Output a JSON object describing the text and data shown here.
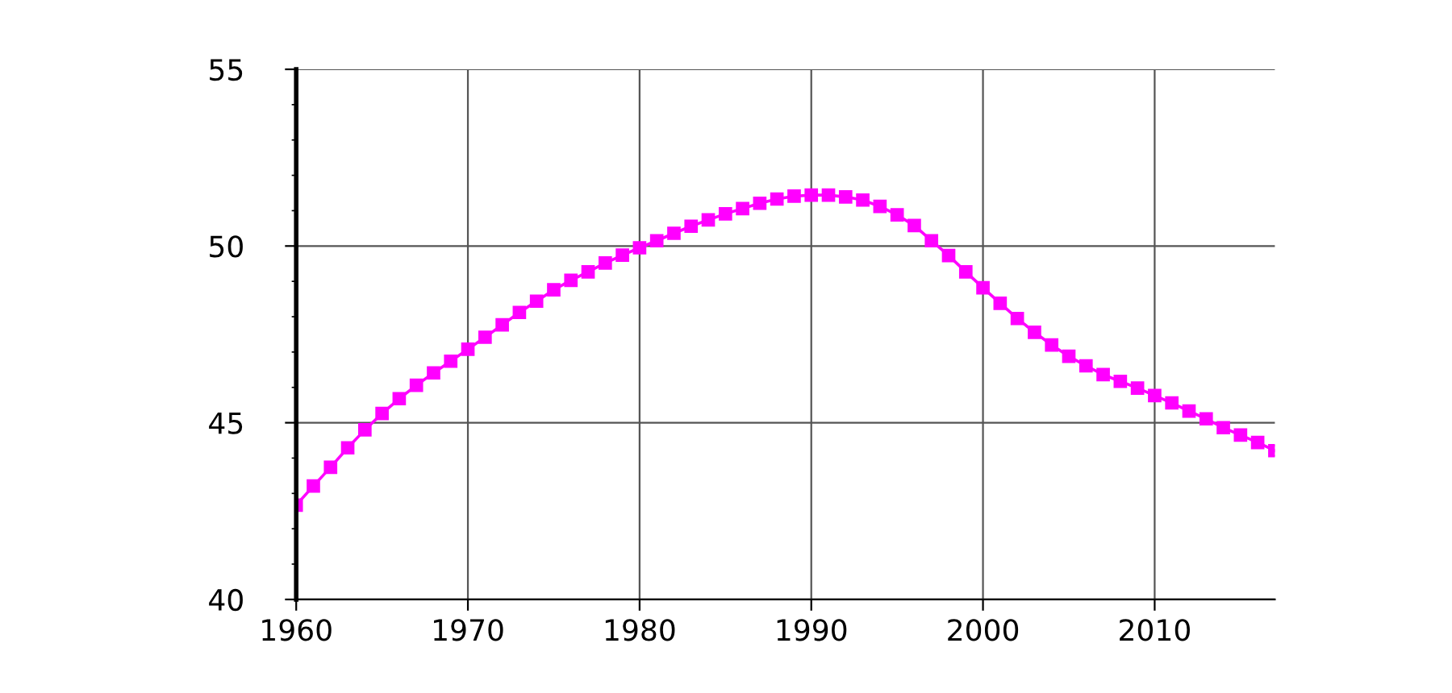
{
  "chart_data": {
    "type": "line",
    "x": [
      1960,
      1961,
      1962,
      1963,
      1964,
      1965,
      1966,
      1967,
      1968,
      1969,
      1970,
      1971,
      1972,
      1973,
      1974,
      1975,
      1976,
      1977,
      1978,
      1979,
      1980,
      1981,
      1982,
      1983,
      1984,
      1985,
      1986,
      1987,
      1988,
      1989,
      1990,
      1991,
      1992,
      1993,
      1994,
      1995,
      1996,
      1997,
      1998,
      1999,
      2000,
      2001,
      2002,
      2003,
      2004,
      2005,
      2006,
      2007,
      2008,
      2009,
      2010,
      2011,
      2012,
      2013,
      2014,
      2015,
      2016,
      2017
    ],
    "series": [
      {
        "color": "#ff00ff",
        "values": [
          42.67,
          43.21,
          43.74,
          44.29,
          44.8,
          45.26,
          45.68,
          46.06,
          46.41,
          46.74,
          47.08,
          47.42,
          47.77,
          48.12,
          48.44,
          48.76,
          49.03,
          49.27,
          49.52,
          49.74,
          49.95,
          50.15,
          50.36,
          50.56,
          50.74,
          50.91,
          51.06,
          51.21,
          51.33,
          51.41,
          51.44,
          51.44,
          51.39,
          51.3,
          51.12,
          50.88,
          50.58,
          50.15,
          49.73,
          49.27,
          48.82,
          48.38,
          47.95,
          47.56,
          47.2,
          46.88,
          46.61,
          46.36,
          46.17,
          45.98,
          45.77,
          45.56,
          45.33,
          45.11,
          44.86,
          44.65,
          44.44,
          44.21
        ]
      }
    ],
    "xlim": [
      1960,
      2017
    ],
    "xticks": [
      1960,
      1970,
      1980,
      1990,
      2000,
      2010
    ],
    "ylim": [
      40,
      55
    ],
    "yticks": [
      40,
      45,
      50,
      55
    ],
    "grid": true,
    "marker": "square",
    "line_style": "solid",
    "legend": false
  }
}
